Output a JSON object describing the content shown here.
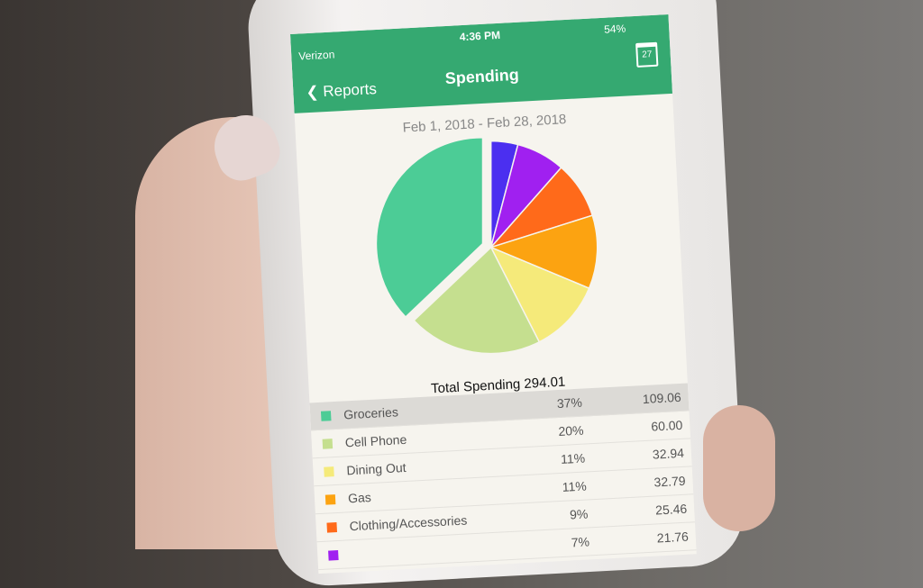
{
  "status_bar": {
    "carrier": "Verizon",
    "time": "4:36 PM",
    "battery": "54%"
  },
  "nav": {
    "back_label": "Reports",
    "title": "Spending",
    "calendar_day": "27"
  },
  "date_range": "Feb 1, 2018 - Feb 28, 2018",
  "total_label": "Total Spending 294.01",
  "chart_data": {
    "type": "pie",
    "slices": [
      {
        "name": "Groceries",
        "percent": 37,
        "value": 109.06,
        "color": "#4ccc96",
        "exploded": true
      },
      {
        "name": "Cell Phone",
        "percent": 20,
        "value": 60.0,
        "color": "#c5df8f"
      },
      {
        "name": "Dining Out",
        "percent": 11,
        "value": 32.94,
        "color": "#f5ea7a"
      },
      {
        "name": "Gas",
        "percent": 11,
        "value": 32.79,
        "color": "#fca311"
      },
      {
        "name": "Clothing/Accessories",
        "percent": 9,
        "value": 25.46,
        "color": "#ff6a1a"
      },
      {
        "name": "",
        "percent": 7,
        "value": 21.76,
        "color": "#a020f0"
      },
      {
        "name": "",
        "percent": 4,
        "value": 12.0,
        "color": "#4b2ff0"
      }
    ]
  },
  "rows": [
    {
      "label": "Groceries",
      "percent": "37%",
      "amount": "109.06",
      "color": "#4ccc96"
    },
    {
      "label": "Cell Phone",
      "percent": "20%",
      "amount": "60.00",
      "color": "#c5df8f"
    },
    {
      "label": "Dining Out",
      "percent": "11%",
      "amount": "32.94",
      "color": "#f5ea7a"
    },
    {
      "label": "Gas",
      "percent": "11%",
      "amount": "32.79",
      "color": "#fca311"
    },
    {
      "label": "Clothing/Accessories",
      "percent": "9%",
      "amount": "25.46",
      "color": "#ff6a1a"
    },
    {
      "label": "",
      "percent": "7%",
      "amount": "21.76",
      "color": "#a020f0"
    }
  ]
}
